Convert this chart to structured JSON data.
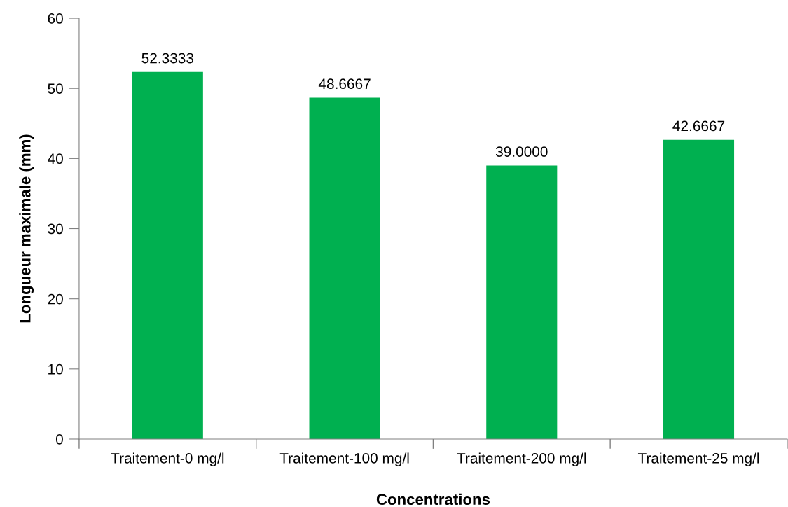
{
  "chart_data": {
    "type": "bar",
    "xlabel": "Concentrations",
    "ylabel": "Longueur maximale (mm)",
    "categories": [
      "Traitement-0 mg/l",
      "Traitement-100 mg/l",
      "Traitement-200 mg/l",
      "Traitement-25 mg/l"
    ],
    "values": [
      52.3333,
      48.6667,
      39.0,
      42.6667
    ],
    "value_labels": [
      "52.3333",
      "48.6667",
      "39.0000",
      "42.6667"
    ],
    "color": "#00b050",
    "ylim": [
      0,
      60
    ],
    "yticks": [
      0,
      10,
      20,
      30,
      40,
      50,
      60
    ],
    "grid": false,
    "legend": false
  }
}
